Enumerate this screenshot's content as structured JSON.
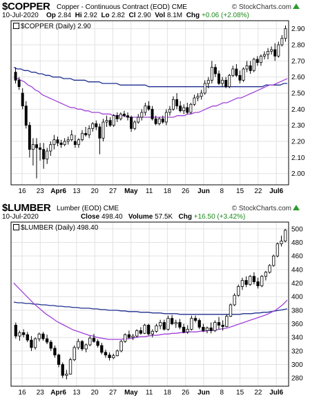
{
  "chart_data": [
    {
      "type": "candlestick",
      "symbol": "$COPPER",
      "description": "Copper - Continuous Contract (EOD)",
      "exchange": "CME",
      "source": "© StockCharts.com",
      "date": "10-Jul-2020",
      "quote": {
        "open_label": "Op",
        "open": "2.84",
        "high_label": "Hi",
        "high": "2.92",
        "low_label": "Lo",
        "low": "2.82",
        "close_label": "Cl",
        "close": "2.90",
        "volume_label": "Vol",
        "volume": "8.1M",
        "change_label": "Chg",
        "change": "+0.06 (+2.08%)"
      },
      "legend": "$COPPER (Daily) 2.90",
      "ylim": [
        1.93,
        2.95
      ],
      "yticks": [
        "2.00",
        "2.10",
        "2.20",
        "2.30",
        "2.40",
        "2.50",
        "2.60",
        "2.70",
        "2.80",
        "2.90"
      ],
      "xticks": [
        "16",
        "23",
        "Apr6",
        "13",
        "20",
        "27",
        "May",
        "11",
        "18",
        "26",
        "Jun",
        "8",
        "15",
        "22",
        "Jul6"
      ],
      "candles": [
        [
          2.63,
          2.66,
          2.56,
          2.58
        ],
        [
          2.58,
          2.6,
          2.52,
          2.54
        ],
        [
          2.5,
          2.53,
          2.4,
          2.42
        ],
        [
          2.42,
          2.45,
          2.28,
          2.3
        ],
        [
          2.3,
          2.32,
          2.1,
          2.15
        ],
        [
          2.15,
          2.22,
          2.05,
          2.18
        ],
        [
          2.18,
          2.22,
          1.97,
          2.16
        ],
        [
          2.16,
          2.19,
          2.08,
          2.15
        ],
        [
          2.15,
          2.19,
          2.03,
          2.09
        ],
        [
          2.09,
          2.16,
          2.06,
          2.14
        ],
        [
          2.14,
          2.2,
          2.11,
          2.18
        ],
        [
          2.18,
          2.24,
          2.15,
          2.21
        ],
        [
          2.21,
          2.23,
          2.17,
          2.19
        ],
        [
          2.19,
          2.21,
          2.16,
          2.18
        ],
        [
          2.18,
          2.22,
          2.17,
          2.2
        ],
        [
          2.2,
          2.23,
          2.18,
          2.21
        ],
        [
          2.21,
          2.27,
          2.2,
          2.24
        ],
        [
          2.2,
          2.24,
          2.16,
          2.18
        ],
        [
          2.18,
          2.22,
          2.16,
          2.21
        ],
        [
          2.21,
          2.27,
          2.2,
          2.25
        ],
        [
          2.25,
          2.29,
          2.23,
          2.24
        ],
        [
          2.24,
          2.3,
          2.22,
          2.28
        ],
        [
          2.28,
          2.32,
          2.26,
          2.31
        ],
        [
          2.31,
          2.33,
          2.27,
          2.29
        ],
        [
          2.29,
          2.31,
          2.12,
          2.22
        ],
        [
          2.22,
          2.34,
          2.2,
          2.32
        ],
        [
          2.32,
          2.36,
          2.29,
          2.33
        ],
        [
          2.33,
          2.35,
          2.29,
          2.3
        ],
        [
          2.3,
          2.37,
          2.29,
          2.36
        ],
        [
          2.36,
          2.38,
          2.32,
          2.34
        ],
        [
          2.34,
          2.38,
          2.33,
          2.37
        ],
        [
          2.37,
          2.39,
          2.35,
          2.36
        ],
        [
          2.36,
          2.38,
          2.33,
          2.35
        ],
        [
          2.35,
          2.36,
          2.26,
          2.28
        ],
        [
          2.28,
          2.33,
          2.27,
          2.32
        ],
        [
          2.32,
          2.37,
          2.31,
          2.35
        ],
        [
          2.35,
          2.4,
          2.33,
          2.38
        ],
        [
          2.38,
          2.44,
          2.36,
          2.42
        ],
        [
          2.42,
          2.45,
          2.39,
          2.4
        ],
        [
          2.4,
          2.42,
          2.33,
          2.34
        ],
        [
          2.34,
          2.36,
          2.3,
          2.31
        ],
        [
          2.31,
          2.35,
          2.3,
          2.34
        ],
        [
          2.34,
          2.36,
          2.31,
          2.32
        ],
        [
          2.32,
          2.4,
          2.3,
          2.38
        ],
        [
          2.38,
          2.42,
          2.36,
          2.4
        ],
        [
          2.4,
          2.48,
          2.39,
          2.46
        ],
        [
          2.46,
          2.5,
          2.4,
          2.42
        ],
        [
          2.42,
          2.45,
          2.38,
          2.39
        ],
        [
          2.39,
          2.43,
          2.37,
          2.41
        ],
        [
          2.41,
          2.44,
          2.37,
          2.38
        ],
        [
          2.38,
          2.44,
          2.37,
          2.43
        ],
        [
          2.43,
          2.49,
          2.42,
          2.47
        ],
        [
          2.47,
          2.5,
          2.45,
          2.48
        ],
        [
          2.48,
          2.52,
          2.46,
          2.5
        ],
        [
          2.5,
          2.58,
          2.49,
          2.56
        ],
        [
          2.56,
          2.6,
          2.53,
          2.58
        ],
        [
          2.58,
          2.7,
          2.56,
          2.66
        ],
        [
          2.66,
          2.68,
          2.6,
          2.62
        ],
        [
          2.62,
          2.64,
          2.55,
          2.56
        ],
        [
          2.56,
          2.6,
          2.54,
          2.58
        ],
        [
          2.58,
          2.6,
          2.53,
          2.54
        ],
        [
          2.54,
          2.62,
          2.53,
          2.61
        ],
        [
          2.61,
          2.67,
          2.6,
          2.65
        ],
        [
          2.65,
          2.68,
          2.6,
          2.61
        ],
        [
          2.61,
          2.64,
          2.56,
          2.58
        ],
        [
          2.58,
          2.66,
          2.57,
          2.65
        ],
        [
          2.65,
          2.7,
          2.63,
          2.67
        ],
        [
          2.67,
          2.7,
          2.62,
          2.64
        ],
        [
          2.64,
          2.72,
          2.63,
          2.71
        ],
        [
          2.71,
          2.73,
          2.67,
          2.69
        ],
        [
          2.69,
          2.74,
          2.67,
          2.73
        ],
        [
          2.73,
          2.76,
          2.71,
          2.74
        ],
        [
          2.74,
          2.78,
          2.71,
          2.76
        ],
        [
          2.76,
          2.79,
          2.74,
          2.77
        ],
        [
          2.77,
          2.81,
          2.7,
          2.73
        ],
        [
          2.73,
          2.82,
          2.72,
          2.8
        ],
        [
          2.8,
          2.86,
          2.79,
          2.84
        ],
        [
          2.84,
          2.92,
          2.82,
          2.9
        ]
      ],
      "ma_long": [
        2.66,
        2.65,
        2.65,
        2.64,
        2.64,
        2.63,
        2.63,
        2.62,
        2.62,
        2.61,
        2.61,
        2.6,
        2.6,
        2.6,
        2.59,
        2.59,
        2.59,
        2.58,
        2.58,
        2.58,
        2.58,
        2.57,
        2.57,
        2.57,
        2.57,
        2.56,
        2.56,
        2.56,
        2.56,
        2.56,
        2.55,
        2.55,
        2.55,
        2.55,
        2.55,
        2.55,
        2.55,
        2.55,
        2.54,
        2.54,
        2.54,
        2.54,
        2.54,
        2.54,
        2.54,
        2.54,
        2.54,
        2.54,
        2.54,
        2.54,
        2.54,
        2.54,
        2.54,
        2.54,
        2.54,
        2.54,
        2.54,
        2.54,
        2.54,
        2.54,
        2.54,
        2.54,
        2.54,
        2.54,
        2.54,
        2.54,
        2.54,
        2.54,
        2.54,
        2.54,
        2.54,
        2.55,
        2.55,
        2.55,
        2.55,
        2.55,
        2.56,
        2.56
      ],
      "ma_short": [
        2.6,
        2.59,
        2.58,
        2.57,
        2.55,
        2.54,
        2.52,
        2.51,
        2.49,
        2.48,
        2.47,
        2.46,
        2.45,
        2.44,
        2.43,
        2.42,
        2.41,
        2.41,
        2.4,
        2.4,
        2.39,
        2.39,
        2.38,
        2.38,
        2.38,
        2.37,
        2.37,
        2.37,
        2.36,
        2.36,
        2.36,
        2.36,
        2.35,
        2.35,
        2.35,
        2.35,
        2.35,
        2.35,
        2.35,
        2.35,
        2.35,
        2.35,
        2.35,
        2.35,
        2.35,
        2.35,
        2.36,
        2.36,
        2.36,
        2.37,
        2.37,
        2.38,
        2.38,
        2.39,
        2.4,
        2.41,
        2.42,
        2.42,
        2.43,
        2.44,
        2.44,
        2.45,
        2.46,
        2.47,
        2.47,
        2.48,
        2.49,
        2.5,
        2.51,
        2.52,
        2.53,
        2.54,
        2.55,
        2.55,
        2.56,
        2.57,
        2.58,
        2.59
      ]
    },
    {
      "type": "candlestick",
      "symbol": "$LUMBER",
      "description": "Lumber (EOD)",
      "exchange": "CME",
      "source": "© StockCharts.com",
      "date": "10-Jul-2020",
      "quote": {
        "close_label": "Close",
        "close": "498.40",
        "volume_label": "Volume",
        "volume": "57.5K",
        "change_label": "Chg",
        "change": "+16.50 (+3.42%)"
      },
      "legend": "$LUMBER (Daily) 498.40",
      "ylim": [
        268,
        510
      ],
      "yticks": [
        "280",
        "300",
        "320",
        "340",
        "360",
        "380",
        "400",
        "420",
        "440",
        "460",
        "480",
        "500"
      ],
      "xticks": [
        "16",
        "23",
        "Apr6",
        "13",
        "20",
        "27",
        "May",
        "11",
        "18",
        "26",
        "Jun",
        "8",
        "15",
        "22",
        "Jul6"
      ],
      "candles": [
        [
          358,
          362,
          338,
          342
        ],
        [
          342,
          350,
          335,
          347
        ],
        [
          347,
          352,
          340,
          344
        ],
        [
          344,
          348,
          333,
          336
        ],
        [
          336,
          342,
          320,
          325
        ],
        [
          325,
          340,
          322,
          338
        ],
        [
          338,
          347,
          334,
          345
        ],
        [
          345,
          348,
          335,
          338
        ],
        [
          338,
          344,
          330,
          333
        ],
        [
          333,
          336,
          320,
          324
        ],
        [
          324,
          328,
          310,
          314
        ],
        [
          314,
          316,
          296,
          300
        ],
        [
          300,
          303,
          280,
          284
        ],
        [
          284,
          292,
          278,
          286
        ],
        [
          286,
          310,
          285,
          307
        ],
        [
          307,
          328,
          305,
          325
        ],
        [
          325,
          338,
          322,
          334
        ],
        [
          334,
          336,
          320,
          323
        ],
        [
          323,
          331,
          318,
          329
        ],
        [
          329,
          342,
          327,
          339
        ],
        [
          339,
          345,
          332,
          334
        ],
        [
          334,
          337,
          325,
          328
        ],
        [
          328,
          332,
          315,
          318
        ],
        [
          318,
          322,
          310,
          314
        ],
        [
          314,
          318,
          306,
          310
        ],
        [
          310,
          316,
          308,
          313
        ],
        [
          313,
          322,
          312,
          320
        ],
        [
          320,
          336,
          318,
          334
        ],
        [
          334,
          346,
          332,
          344
        ],
        [
          344,
          350,
          338,
          340
        ],
        [
          340,
          345,
          336,
          342
        ],
        [
          342,
          352,
          340,
          350
        ],
        [
          350,
          355,
          344,
          346
        ],
        [
          346,
          360,
          345,
          358
        ],
        [
          358,
          360,
          343,
          345
        ],
        [
          345,
          352,
          340,
          349
        ],
        [
          349,
          360,
          347,
          357
        ],
        [
          357,
          366,
          352,
          362
        ],
        [
          362,
          366,
          350,
          352
        ],
        [
          352,
          372,
          350,
          368
        ],
        [
          368,
          373,
          358,
          360
        ],
        [
          360,
          366,
          354,
          362
        ],
        [
          362,
          367,
          352,
          355
        ],
        [
          355,
          360,
          346,
          348
        ],
        [
          348,
          358,
          345,
          352
        ],
        [
          352,
          372,
          350,
          368
        ],
        [
          368,
          372,
          362,
          365
        ],
        [
          365,
          368,
          352,
          355
        ],
        [
          355,
          360,
          348,
          350
        ],
        [
          350,
          356,
          346,
          354
        ],
        [
          354,
          362,
          346,
          350
        ],
        [
          350,
          365,
          348,
          362
        ],
        [
          362,
          370,
          352,
          358
        ],
        [
          358,
          365,
          350,
          356
        ],
        [
          356,
          374,
          355,
          371
        ],
        [
          371,
          390,
          370,
          388
        ],
        [
          388,
          405,
          386,
          402
        ],
        [
          402,
          418,
          400,
          415
        ],
        [
          415,
          428,
          410,
          424
        ],
        [
          424,
          430,
          414,
          418
        ],
        [
          418,
          432,
          416,
          430
        ],
        [
          430,
          436,
          418,
          422
        ],
        [
          422,
          428,
          412,
          416
        ],
        [
          416,
          432,
          414,
          430
        ],
        [
          430,
          438,
          424,
          436
        ],
        [
          436,
          448,
          434,
          446
        ],
        [
          446,
          462,
          444,
          460
        ],
        [
          460,
          480,
          458,
          478
        ],
        [
          478,
          490,
          474,
          482
        ],
        [
          482,
          500,
          480,
          498
        ]
      ],
      "ma_long": [
        392,
        391,
        391,
        390,
        390,
        389,
        389,
        388,
        388,
        387,
        387,
        386,
        386,
        385,
        385,
        384,
        384,
        383,
        383,
        383,
        382,
        382,
        381,
        381,
        380,
        380,
        380,
        379,
        379,
        378,
        378,
        378,
        377,
        377,
        377,
        376,
        376,
        376,
        375,
        375,
        375,
        375,
        374,
        374,
        374,
        374,
        374,
        374,
        374,
        374,
        374,
        374,
        374,
        374,
        374,
        374,
        374,
        374,
        375,
        375,
        375,
        376,
        376,
        377,
        377,
        378,
        379,
        380,
        381,
        382
      ],
      "ma_short": [
        420,
        414,
        408,
        402,
        396,
        390,
        385,
        380,
        375,
        371,
        367,
        363,
        360,
        357,
        354,
        351,
        349,
        347,
        345,
        343,
        342,
        340,
        339,
        338,
        337,
        337,
        337,
        337,
        338,
        338,
        339,
        340,
        341,
        341,
        342,
        343,
        343,
        344,
        345,
        345,
        346,
        346,
        347,
        347,
        348,
        348,
        348,
        349,
        349,
        350,
        350,
        351,
        352,
        353,
        354,
        356,
        358,
        360,
        362,
        364,
        366,
        368,
        370,
        372,
        374,
        377,
        380,
        384,
        389,
        395
      ]
    }
  ]
}
